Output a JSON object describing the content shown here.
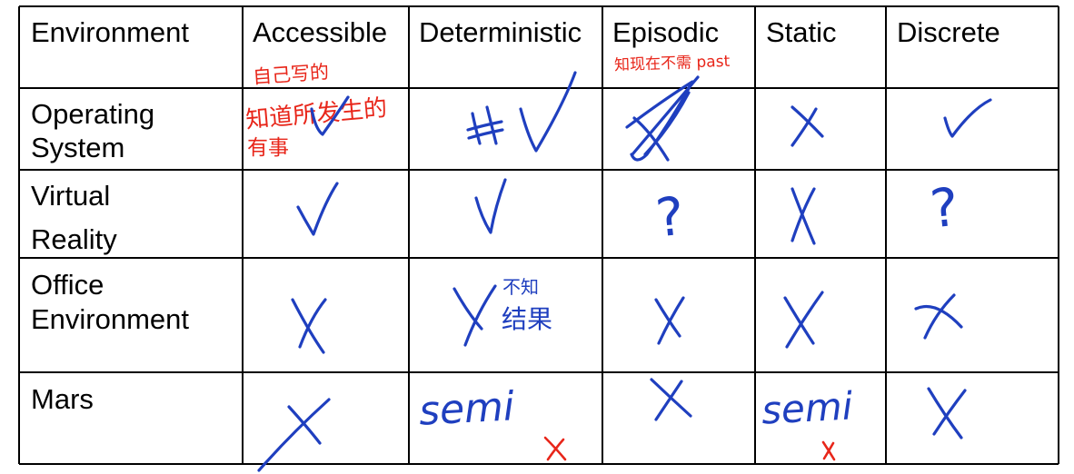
{
  "table": {
    "headers": [
      "Environment",
      "Accessible",
      "Deterministic",
      "Episodic",
      "Static",
      "Discrete"
    ],
    "rows": [
      {
        "name_line1": "Operating",
        "name_line2": "System"
      },
      {
        "name_line1": "Virtual",
        "name_line2": "Reality"
      },
      {
        "name_line1": "Office",
        "name_line2": "Environment"
      },
      {
        "name_line1": "Mars",
        "name_line2": ""
      }
    ]
  },
  "annotations": {
    "accessible_note_line1": "自己写的",
    "accessible_note_line2": "知道所发生的",
    "accessible_note_line3": "有事",
    "episodic_note": "知现在不需 past",
    "deterministic_office_note_line1": "不知",
    "deterministic_office_note_line2": "结果",
    "mars_deterministic": "semi",
    "mars_static": "semi",
    "question_mark": "?"
  },
  "colors": {
    "ink_blue": "#1f3fbf",
    "ink_red": "#e8261a",
    "grid": "#000000"
  }
}
